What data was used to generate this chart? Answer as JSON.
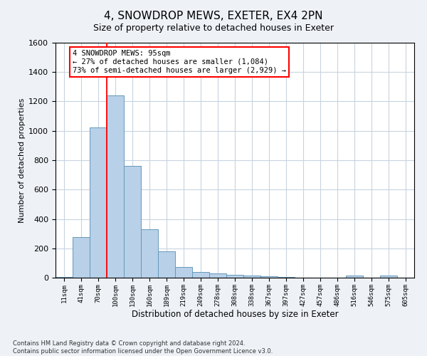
{
  "title1": "4, SNOWDROP MEWS, EXETER, EX4 2PN",
  "title2": "Size of property relative to detached houses in Exeter",
  "xlabel": "Distribution of detached houses by size in Exeter",
  "ylabel": "Number of detached properties",
  "categories": [
    "11sqm",
    "41sqm",
    "70sqm",
    "100sqm",
    "130sqm",
    "160sqm",
    "189sqm",
    "219sqm",
    "249sqm",
    "278sqm",
    "308sqm",
    "338sqm",
    "367sqm",
    "397sqm",
    "427sqm",
    "457sqm",
    "486sqm",
    "516sqm",
    "546sqm",
    "575sqm",
    "605sqm"
  ],
  "values": [
    5,
    275,
    1025,
    1240,
    760,
    330,
    180,
    75,
    40,
    30,
    20,
    15,
    10,
    5,
    0,
    0,
    0,
    15,
    0,
    15,
    0
  ],
  "bar_color": "#b8d0e8",
  "bar_edge_color": "#6699bb",
  "ylim": [
    0,
    1600
  ],
  "yticks": [
    0,
    200,
    400,
    600,
    800,
    1000,
    1200,
    1400,
    1600
  ],
  "redline_x": 2.5,
  "annotation_line1": "4 SNOWDROP MEWS: 95sqm",
  "annotation_line2": "← 27% of detached houses are smaller (1,084)",
  "annotation_line3": "73% of semi-detached houses are larger (2,929) →",
  "footer1": "Contains HM Land Registry data © Crown copyright and database right 2024.",
  "footer2": "Contains public sector information licensed under the Open Government Licence v3.0.",
  "bg_color": "#eef2f7",
  "plot_bg_color": "#ffffff",
  "grid_color": "#c8d4e0",
  "title1_fontsize": 11,
  "title2_fontsize": 9,
  "ylabel_fontsize": 8,
  "xlabel_fontsize": 8.5,
  "ytick_fontsize": 8,
  "xtick_fontsize": 6.5,
  "footer_fontsize": 6.0,
  "annot_fontsize": 7.5
}
